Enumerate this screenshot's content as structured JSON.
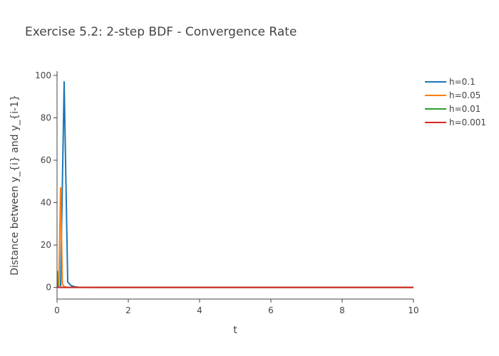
{
  "chart_data": {
    "type": "line",
    "title": "Exercise 5.2: 2-step BDF - Convergence Rate",
    "xlabel": "t",
    "ylabel": "Distance between y_{i} and y_{i-1}",
    "xlim": [
      0,
      10
    ],
    "ylim": [
      -5.5,
      102
    ],
    "xticks": [
      0,
      2,
      4,
      6,
      8,
      10
    ],
    "yticks": [
      0,
      20,
      40,
      60,
      80,
      100
    ],
    "grid": false,
    "legend_position": "top-right",
    "series": [
      {
        "name": "h=0.1",
        "color": "#1f77b4",
        "x": [
          0.1,
          0.2,
          0.3,
          0.4,
          0.5,
          0.6,
          1.0,
          2.0,
          4.0,
          6.0,
          8.0,
          10.0
        ],
        "y": [
          0.5,
          97,
          2.5,
          0.8,
          0.3,
          0.1,
          0.02,
          0,
          0,
          0,
          0,
          0
        ]
      },
      {
        "name": "h=0.05",
        "color": "#ff7f0e",
        "x": [
          0.05,
          0.1,
          0.15,
          0.2,
          0.25,
          0.3,
          0.5,
          1.0,
          2.0,
          5.0,
          10.0
        ],
        "y": [
          0.2,
          47,
          1.5,
          0.4,
          0.15,
          0.05,
          0.01,
          0,
          0,
          0,
          0
        ]
      },
      {
        "name": "h=0.01",
        "color": "#2ca02c",
        "x": [
          0.0,
          0.01,
          0.02,
          0.03,
          0.04,
          0.05,
          0.1,
          0.5,
          1.0,
          5.0,
          10.0
        ],
        "y": [
          0.1,
          7.5,
          0.6,
          0.2,
          0.1,
          0.05,
          0.01,
          0,
          0,
          0,
          0
        ]
      },
      {
        "name": "h=0.001",
        "color": "#d62728",
        "x": [
          0.0,
          0.001,
          0.002,
          0.005,
          0.1,
          1.0,
          5.0,
          10.0
        ],
        "y": [
          0.0,
          0.6,
          0.05,
          0.01,
          0,
          0,
          0,
          0
        ]
      }
    ]
  }
}
